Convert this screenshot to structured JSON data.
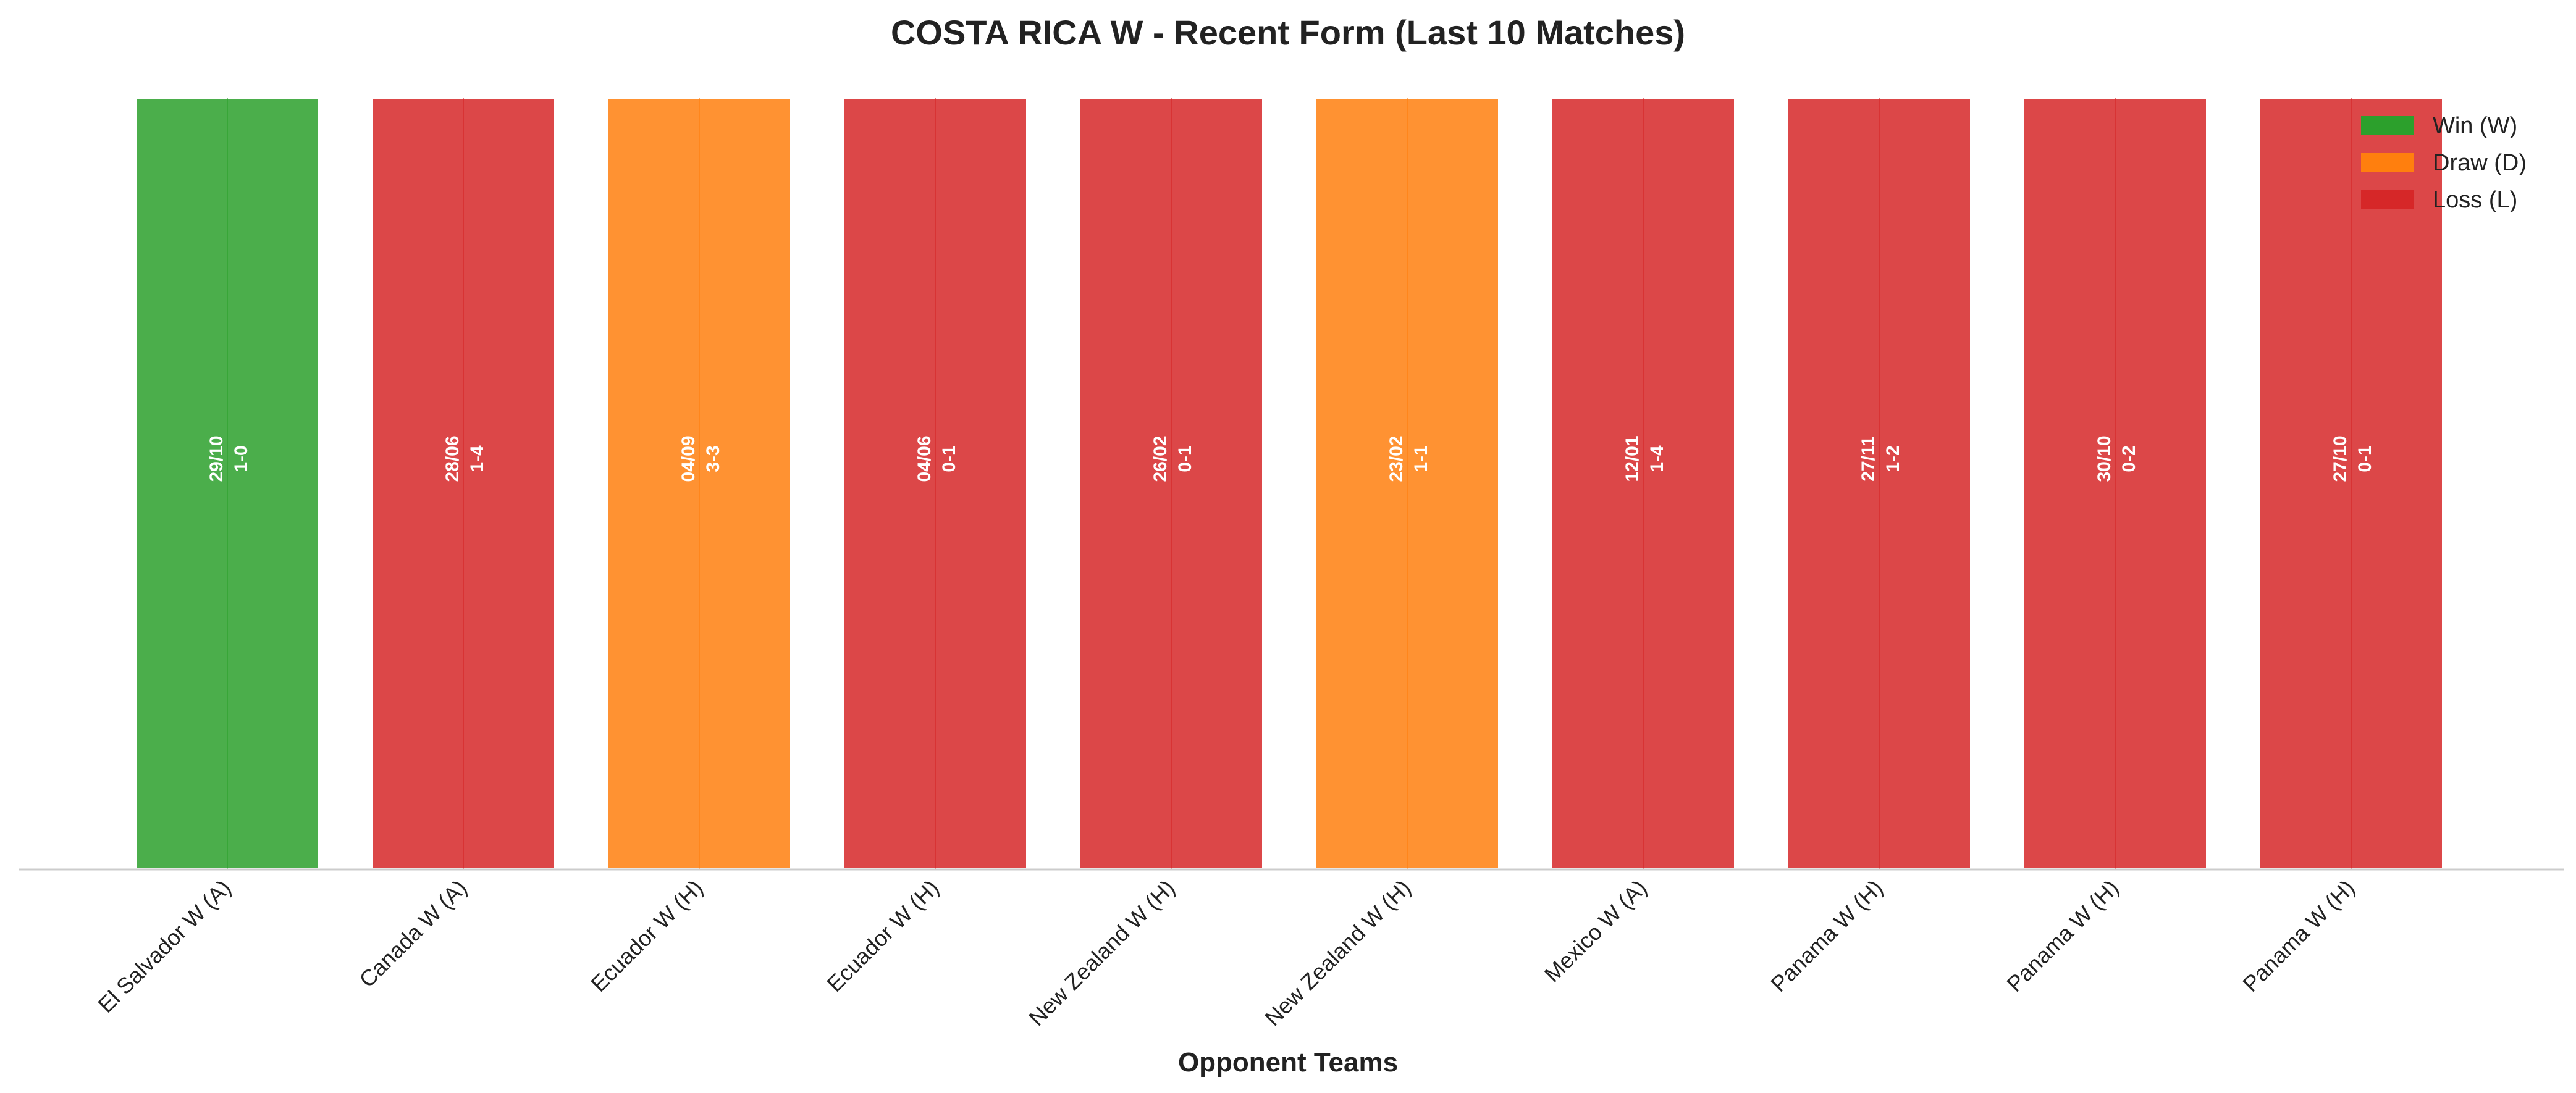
{
  "chart_data": {
    "type": "bar",
    "title": "COSTA RICA W - Recent Form (Last 10 Matches)",
    "xlabel": "Opponent Teams",
    "ylabel": "",
    "grid": false,
    "legend_position": "top-right",
    "categories": [
      "El Salvador W (A)",
      "Canada W (A)",
      "Ecuador W (H)",
      "Ecuador W (H)",
      "New Zealand W (H)",
      "New Zealand W (H)",
      "Mexico W (A)",
      "Panama W (H)",
      "Panama W (H)",
      "Panama W (H)"
    ],
    "values": [
      1,
      1,
      1,
      1,
      1,
      1,
      1,
      1,
      1,
      1
    ],
    "results": [
      "W",
      "L",
      "D",
      "L",
      "L",
      "D",
      "L",
      "L",
      "L",
      "L"
    ],
    "dates": [
      "29/10",
      "28/06",
      "04/09",
      "04/06",
      "26/02",
      "23/02",
      "12/01",
      "27/11",
      "30/10",
      "27/10"
    ],
    "scores": [
      "1-0",
      "1-4",
      "3-3",
      "0-1",
      "0-1",
      "1-1",
      "1-4",
      "1-2",
      "0-2",
      "0-1"
    ],
    "legend": [
      {
        "key": "W",
        "label": "Win (W)",
        "color": "#2ca02c"
      },
      {
        "key": "D",
        "label": "Draw (D)",
        "color": "#ff7f0e"
      },
      {
        "key": "L",
        "label": "Loss (L)",
        "color": "#d62728"
      }
    ],
    "colors": {
      "W": "#2ca02c",
      "D": "#ff7f0e",
      "L": "#d62728"
    }
  }
}
